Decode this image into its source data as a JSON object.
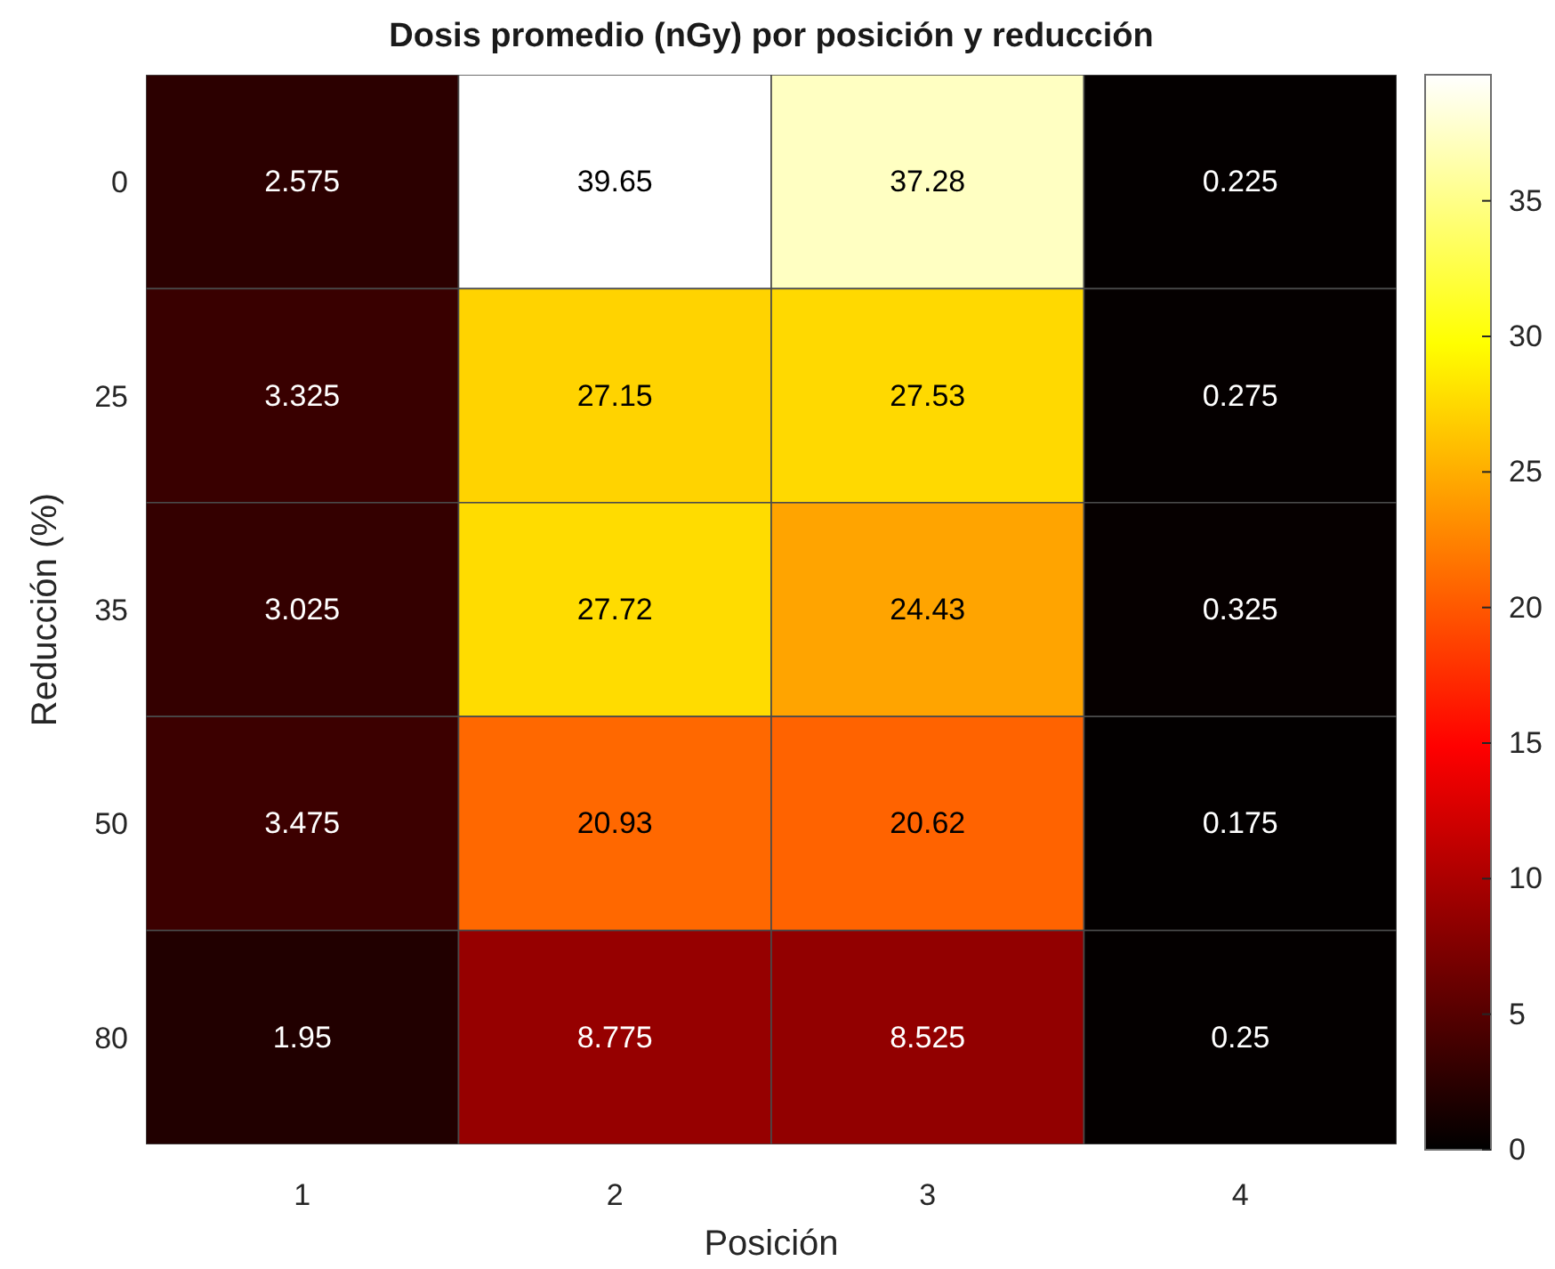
{
  "chart_data": {
    "type": "heatmap",
    "title": "Dosis promedio (nGy) por posición y reducción",
    "xlabel": "Posición",
    "ylabel": "Reducción (%)",
    "categories": [
      "1",
      "2",
      "3",
      "4"
    ],
    "y_categories": [
      "0",
      "25",
      "35",
      "50",
      "80"
    ],
    "cells": [
      [
        2.575,
        39.65,
        37.28,
        0.225
      ],
      [
        3.325,
        27.15,
        27.53,
        0.275
      ],
      [
        3.025,
        27.72,
        24.43,
        0.325
      ],
      [
        3.475,
        20.93,
        20.62,
        0.175
      ],
      [
        1.95,
        8.775,
        8.525,
        0.25
      ]
    ],
    "clim": [
      0,
      39.65
    ],
    "cticks": [
      0,
      5,
      10,
      15,
      20,
      25,
      30,
      35
    ],
    "data_labels": true
  }
}
